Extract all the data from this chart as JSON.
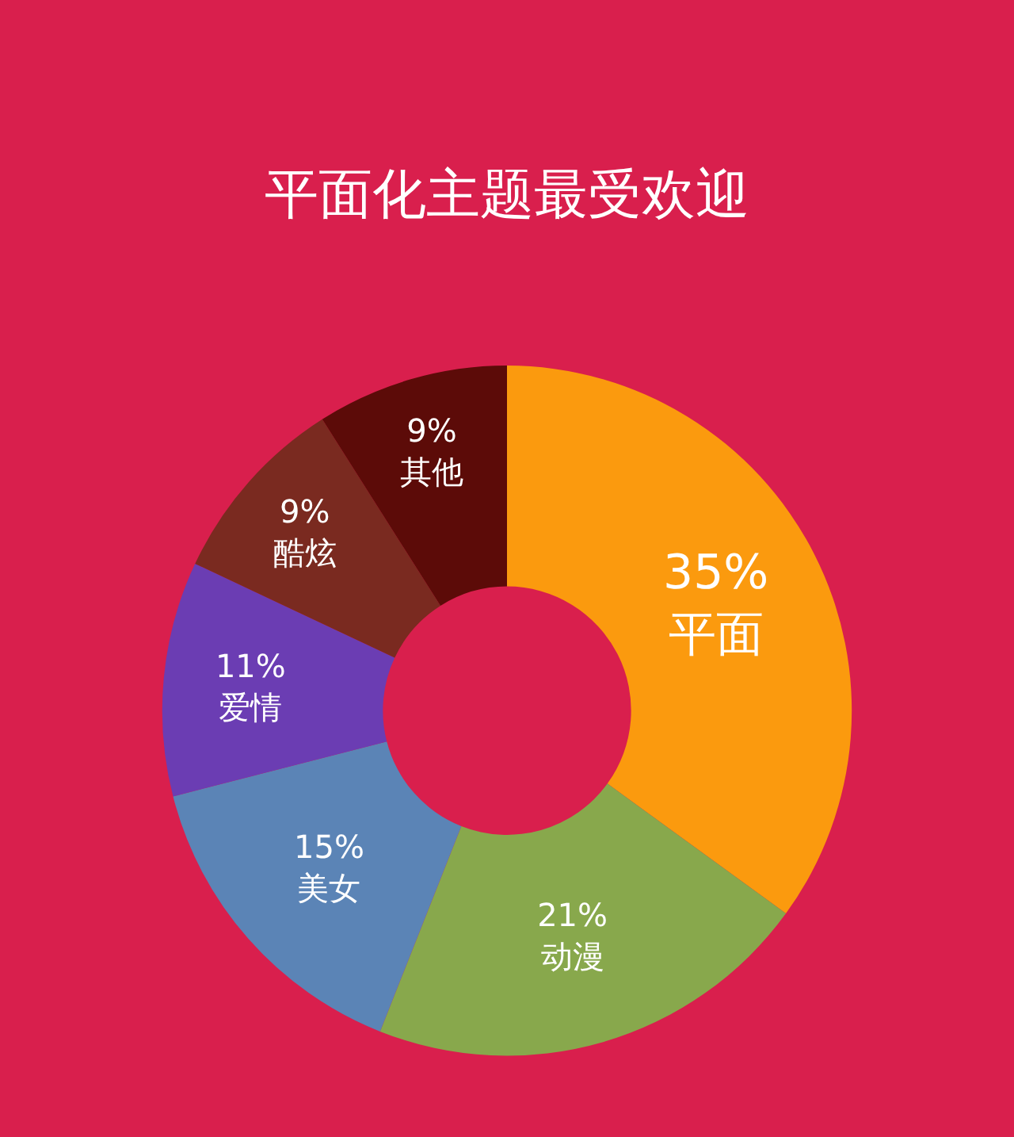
{
  "chart_data": {
    "type": "donut",
    "title": "平面化主题最受欢迎",
    "categories": [
      "平面",
      "动漫",
      "美女",
      "爱情",
      "酷炫",
      "其他"
    ],
    "values": [
      35,
      21,
      15,
      11,
      9,
      9
    ],
    "value_labels": [
      "35%",
      "21%",
      "15%",
      "11%",
      "9%",
      "9%"
    ],
    "colors": [
      "#fb9a0e",
      "#88a84c",
      "#5b84b6",
      "#6b3db3",
      "#7a2a20",
      "#5c0b08"
    ],
    "legend": false
  }
}
